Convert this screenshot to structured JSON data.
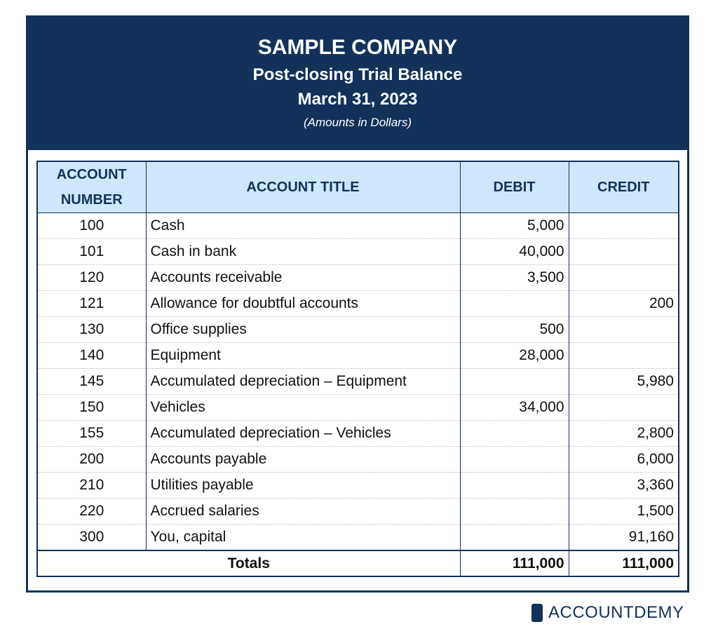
{
  "header": {
    "company": "SAMPLE COMPANY",
    "title": "Post-closing Trial Balance",
    "date": "March 31, 2023",
    "note": "(Amounts in Dollars)"
  },
  "table": {
    "columns": [
      "ACCOUNT NUMBER",
      "ACCOUNT TITLE",
      "DEBIT",
      "CREDIT"
    ],
    "rows": [
      [
        "100",
        "Cash",
        "5,000",
        null
      ],
      [
        "101",
        "Cash in bank",
        "40,000",
        null
      ],
      [
        "120",
        "Accounts receivable",
        "3,500",
        null
      ],
      [
        "121",
        "Allowance for doubtful accounts",
        null,
        "200"
      ],
      [
        "130",
        "Office supplies",
        "500",
        null
      ],
      [
        "140",
        "Equipment",
        "28,000",
        null
      ],
      [
        "145",
        "Accumulated depreciation – Equipment",
        null,
        "5,980"
      ],
      [
        "150",
        "Vehicles",
        "34,000",
        null
      ],
      [
        "155",
        "Accumulated depreciation – Vehicles",
        null,
        "2,800"
      ],
      [
        "200",
        "Accounts payable",
        null,
        "6,000"
      ],
      [
        "210",
        "Utilities payable",
        null,
        "3,360"
      ],
      [
        "220",
        "Accrued salaries",
        null,
        "1,500"
      ],
      [
        "300",
        "You, capital",
        null,
        "91,160"
      ]
    ],
    "totals": {
      "label": "Totals",
      "debit": "111,000",
      "credit": "111,000"
    }
  },
  "logo": "ACCOUNTDEMY"
}
